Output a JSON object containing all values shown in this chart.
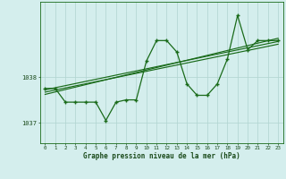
{
  "title": "Graphe pression niveau de la mer (hPa)",
  "bg_color": "#d4eeed",
  "line_color": "#1a6b1a",
  "grid_color": "#b0d4d0",
  "text_color": "#1a4a1a",
  "x_ticks": [
    0,
    1,
    2,
    3,
    4,
    5,
    6,
    7,
    8,
    9,
    10,
    11,
    12,
    13,
    14,
    15,
    16,
    17,
    18,
    19,
    20,
    21,
    22,
    23
  ],
  "ylim": [
    1036.55,
    1039.65
  ],
  "yticks": [
    1037,
    1038
  ],
  "main_x": [
    0,
    1,
    2,
    3,
    4,
    5,
    6,
    7,
    8,
    9,
    10,
    11,
    12,
    13,
    14,
    15,
    16,
    17,
    18,
    19,
    20,
    21,
    22,
    23
  ],
  "main_y": [
    1037.75,
    1037.75,
    1037.45,
    1037.45,
    1037.45,
    1037.45,
    1037.05,
    1037.45,
    1037.5,
    1037.5,
    1038.35,
    1038.8,
    1038.8,
    1038.55,
    1037.85,
    1037.6,
    1037.6,
    1037.85,
    1038.4,
    1039.35,
    1038.6,
    1038.8,
    1038.8,
    1038.8
  ],
  "trend1_x": [
    0,
    23
  ],
  "trend1_y": [
    1037.72,
    1038.78
  ],
  "trend2_x": [
    0,
    23
  ],
  "trend2_y": [
    1037.62,
    1038.85
  ],
  "trend3_x": [
    0,
    23
  ],
  "trend3_y": [
    1037.67,
    1038.72
  ]
}
